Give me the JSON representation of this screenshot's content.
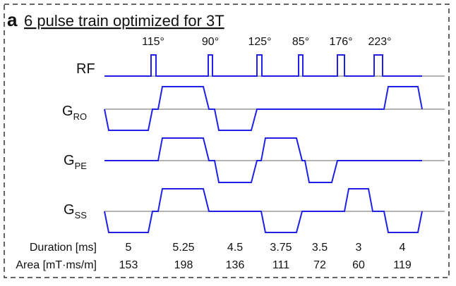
{
  "panel": {
    "letter": "a",
    "title": "6 pulse train optimized for 3T"
  },
  "channels": {
    "rf": "RF",
    "ro": {
      "main": "G",
      "sub": "RO"
    },
    "pe": {
      "main": "G",
      "sub": "PE"
    },
    "ss": {
      "main": "G",
      "sub": "SS"
    }
  },
  "flip_angles": [
    "115°",
    "90°",
    "125°",
    "85°",
    "176°",
    "223°"
  ],
  "table": {
    "duration_label": "Duration [ms]",
    "area_label": "Area [mT·ms/m]",
    "durations": [
      "5",
      "5.25",
      "4.5",
      "3.75",
      "3.5",
      "3",
      "4"
    ],
    "areas": [
      "153",
      "198",
      "136",
      "111",
      "72",
      "60",
      "119"
    ]
  },
  "colors": {
    "waveform": "#1f1fe6",
    "baseline": "#9a9a9a",
    "border": "#333333",
    "text": "#111111"
  }
}
